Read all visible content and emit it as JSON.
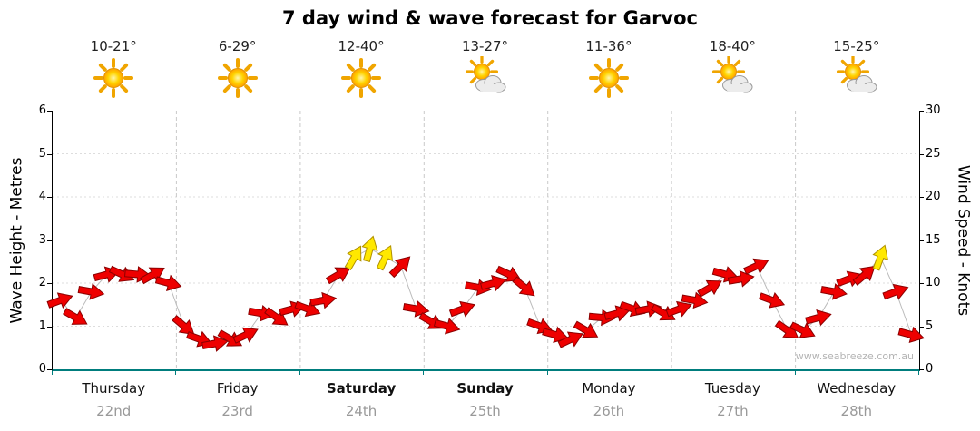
{
  "title": "7 day wind & wave forecast for Garvoc",
  "watermark": "www.seabreeze.com.au",
  "left_axis": {
    "label": "Wave Height - Metres",
    "ticks": [
      0,
      1,
      2,
      3,
      4,
      5,
      6
    ]
  },
  "right_axis": {
    "label": "Wind Speed - Knots",
    "ticks": [
      0,
      5,
      10,
      15,
      20,
      25,
      30
    ]
  },
  "days": [
    {
      "name": "Thursday",
      "date": "22nd",
      "temp": "10-21°",
      "icon": "sun",
      "bold": false
    },
    {
      "name": "Friday",
      "date": "23rd",
      "temp": "6-29°",
      "icon": "sun",
      "bold": false
    },
    {
      "name": "Saturday",
      "date": "24th",
      "temp": "12-40°",
      "icon": "sun",
      "bold": true
    },
    {
      "name": "Sunday",
      "date": "25th",
      "temp": "13-27°",
      "icon": "sun-cloud",
      "bold": true
    },
    {
      "name": "Monday",
      "date": "26th",
      "temp": "11-36°",
      "icon": "sun",
      "bold": false
    },
    {
      "name": "Tuesday",
      "date": "27th",
      "temp": "18-40°",
      "icon": "sun-cloud",
      "bold": false
    },
    {
      "name": "Wednesday",
      "date": "28th",
      "temp": "15-25°",
      "icon": "sun-cloud",
      "bold": false
    }
  ],
  "chart_data": {
    "type": "scatter",
    "title": "7 day wind & wave forecast for Garvoc",
    "ylabel_left": "Wave Height - Metres",
    "ylabel_right": "Wind Speed - Knots",
    "y_left_range": [
      0,
      6
    ],
    "y_right_range": [
      0,
      30
    ],
    "grid": true,
    "categories": [
      "Thursday 22nd",
      "Friday 23rd",
      "Saturday 24th",
      "Sunday 25th",
      "Monday 26th",
      "Tuesday 27th",
      "Wednesday 28th"
    ],
    "points_per_day": 8,
    "series_name": "Wind speed (knots), shown as direction arrows",
    "wind_knots": [
      8,
      6,
      9,
      11,
      11,
      11,
      11,
      10,
      5,
      3.5,
      3,
      3.5,
      4,
      6.5,
      6,
      7,
      7,
      8,
      11,
      13,
      14,
      13,
      12,
      7,
      5.5,
      5,
      7,
      9.5,
      10,
      11,
      9.5,
      5,
      4,
      3.5,
      4.5,
      6,
      6.5,
      7,
      7,
      6.5,
      7,
      8,
      9.5,
      11,
      10.5,
      12,
      8,
      4.5,
      4.5,
      6,
      9,
      10.5,
      11,
      13,
      9,
      4
    ],
    "wind_dir_deg": [
      -20,
      30,
      10,
      -15,
      25,
      5,
      -30,
      15,
      40,
      20,
      -10,
      30,
      -25,
      10,
      35,
      -15,
      20,
      -10,
      -30,
      -60,
      -75,
      -65,
      -45,
      10,
      30,
      15,
      -20,
      10,
      -15,
      25,
      40,
      20,
      15,
      -25,
      30,
      5,
      -15,
      20,
      -10,
      30,
      -20,
      10,
      -30,
      15,
      -10,
      -25,
      20,
      35,
      25,
      -15,
      10,
      -20,
      -40,
      -70,
      -20,
      15
    ],
    "strong_threshold_knots": 12.5,
    "colors": {
      "normal": "#ee0000",
      "normal_outline": "#8b0000",
      "strong": "#ffe800",
      "strong_outline": "#b09000",
      "axis_bottom": "#007d7d",
      "grid_line": "#dddddd",
      "day_divider": "#c9c9c9"
    }
  }
}
